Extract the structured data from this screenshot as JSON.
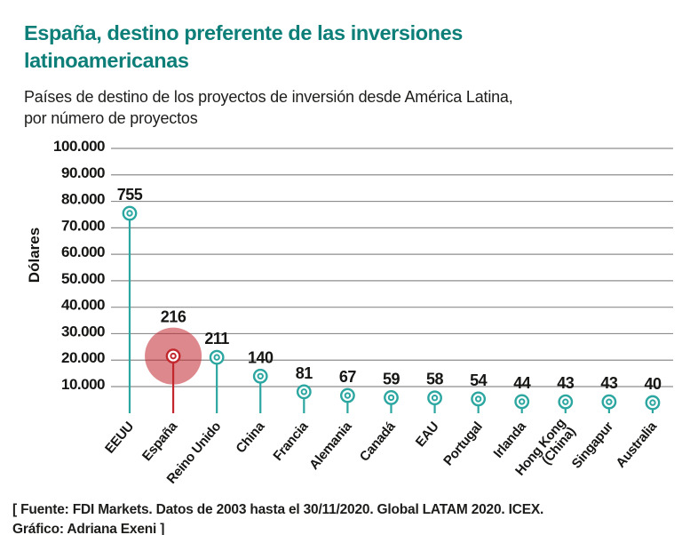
{
  "header": {
    "title_lines": [
      "España, destino preferente de las inversiones",
      "latinoamericanas"
    ],
    "subtitle_lines": [
      "Países de destino de los proyectos de inversión desde América Latina,",
      "por número de proyectos"
    ]
  },
  "footer": {
    "lines": [
      "[ Fuente: FDI Markets. Datos de 2003 hasta el 30/11/2020. Global LATAM 2020. ICEX.",
      "Gráfico: Adriana Exeni ]"
    ]
  },
  "colors": {
    "title_teal": "#0d7f78",
    "series_teal": "#2ca6a0",
    "highlight_red": "#c1272d",
    "highlight_halo": "#c1272d",
    "highlight_halo_opacity": 0.55,
    "gridline_gray": "#8d8d8d",
    "text_dark": "#161614"
  },
  "chart_data": {
    "type": "lollipop",
    "title": "España, destino preferente de las inversiones latinoamericanas",
    "subtitle": "Países de destino de los proyectos de inversión desde América Latina, por número de proyectos",
    "ylabel": "Dólares",
    "xlabel": "",
    "ylim": [
      0,
      100000
    ],
    "y_tick_labels": [
      "100.000",
      "90.000",
      "80.000",
      "70.000",
      "60.000",
      "50.000",
      "40.000",
      "30.000",
      "20.000",
      "10.000"
    ],
    "grid": true,
    "legend": false,
    "categories": [
      "EEUU",
      "España",
      "Reino Unido",
      "China",
      "Francia",
      "Alemania",
      "Canadá",
      "EAU",
      "Portugal",
      "Irlanda",
      "Hong Kong (China)",
      "Singapur",
      "Australia"
    ],
    "values": [
      755,
      216,
      211,
      140,
      81,
      67,
      59,
      58,
      54,
      44,
      43,
      43,
      40
    ],
    "value_axis_scale_factor": 100,
    "highlighted_category": "España"
  }
}
